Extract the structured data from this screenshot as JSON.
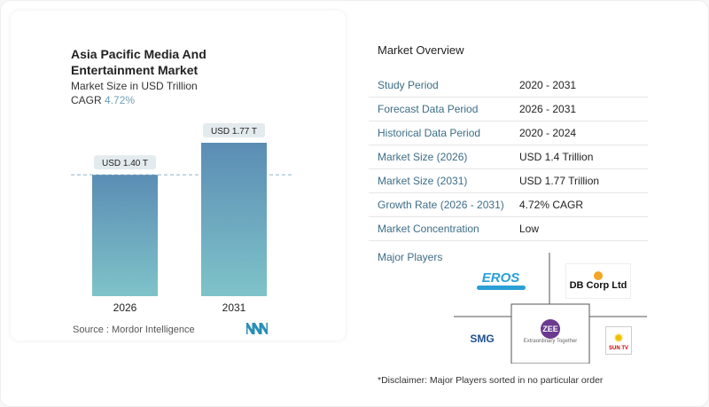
{
  "card": {
    "title": "Asia Pacific Media And Entertainment Market",
    "subtitle": "Market Size in USD Trillion",
    "cagr_label": "CAGR",
    "cagr_value": "4.72%",
    "source": "Source :  Mordor Intelligence"
  },
  "chart_data": {
    "type": "bar",
    "categories": [
      "2026",
      "2031"
    ],
    "values": [
      1.4,
      1.77
    ],
    "data_labels": [
      "USD 1.40 T",
      "USD 1.77 T"
    ],
    "title": "Asia Pacific Media And Entertainment Market",
    "ylabel": "Market Size in USD Trillion",
    "ylim": [
      0,
      1.77
    ],
    "grid": false,
    "colors": {
      "bar_top": "#5b8db4",
      "bar_bottom": "#7fc3c9"
    }
  },
  "overview": {
    "title": "Market Overview",
    "rows": [
      {
        "k": "Study Period",
        "v": "2020 - 2031"
      },
      {
        "k": "Forecast Data Period",
        "v": "2026 - 2031"
      },
      {
        "k": "Historical Data Period",
        "v": "2020 - 2024"
      },
      {
        "k": "Market Size (2026)",
        "v": "USD 1.4 Trillion"
      },
      {
        "k": "Market Size (2031)",
        "v": "USD 1.77 Trillion"
      },
      {
        "k": "Growth Rate (2026 - 2031)",
        "v": "4.72% CAGR"
      },
      {
        "k": "Market Concentration",
        "v": "Low"
      }
    ],
    "players_title": "Major Players",
    "players": [
      "EROS",
      "DB Corp Ltd",
      "ZEE",
      "Extraordinary Together",
      "SMG",
      "SUN TV"
    ],
    "disclaimer": "*Disclaimer: Major Players sorted in no particular order"
  }
}
